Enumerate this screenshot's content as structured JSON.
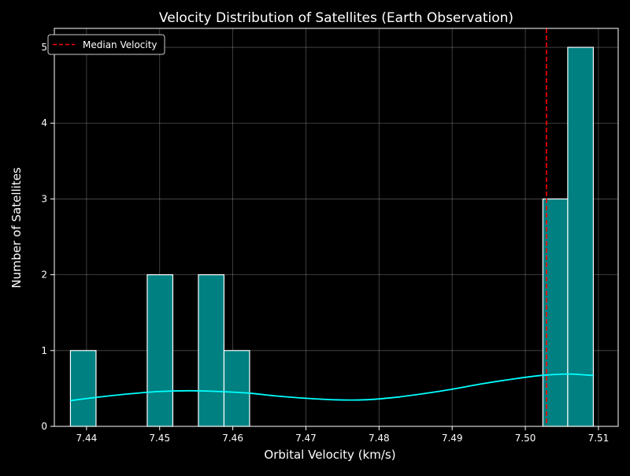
{
  "chart_data": {
    "type": "bar",
    "title": "Velocity Distribution of Satellites (Earth Observation)",
    "xlabel": "Orbital Velocity (km/s)",
    "ylabel": "Number of Satellites",
    "xlim": [
      7.4356,
      7.5127
    ],
    "ylim": [
      0,
      5.25
    ],
    "x_ticks": [
      7.44,
      7.45,
      7.46,
      7.47,
      7.48,
      7.49,
      7.5,
      7.51
    ],
    "x_tick_labels": [
      "7.44",
      "7.45",
      "7.46",
      "7.47",
      "7.48",
      "7.49",
      "7.50",
      "7.51"
    ],
    "y_ticks": [
      0,
      1,
      2,
      3,
      4,
      5
    ],
    "y_tick_labels": [
      "0",
      "1",
      "2",
      "3",
      "4",
      "5"
    ],
    "grid": true,
    "background": "#000000",
    "bar_fill": "#008080",
    "bar_edge": "#ffffff",
    "bin_edges": [
      7.4378,
      7.4413,
      7.4448,
      7.4483,
      7.4518,
      7.4553,
      7.4588,
      7.4623,
      7.4658,
      7.4693,
      7.4728,
      7.4763,
      7.4798,
      7.4833,
      7.4868,
      7.4903,
      7.4938,
      7.4973,
      7.5008,
      7.5024,
      7.5058,
      7.5093
    ],
    "bins": [
      {
        "x0": 7.4378,
        "x1": 7.4413,
        "count": 1
      },
      {
        "x0": 7.4483,
        "x1": 7.4518,
        "count": 2
      },
      {
        "x0": 7.4553,
        "x1": 7.4588,
        "count": 2
      },
      {
        "x0": 7.4588,
        "x1": 7.4623,
        "count": 1
      },
      {
        "x0": 7.5024,
        "x1": 7.5058,
        "count": 3
      },
      {
        "x0": 7.5058,
        "x1": 7.5093,
        "count": 5
      }
    ],
    "kde": {
      "color": "#00ffff",
      "x": [
        7.4378,
        7.442,
        7.446,
        7.45,
        7.454,
        7.458,
        7.462,
        7.466,
        7.47,
        7.474,
        7.478,
        7.482,
        7.486,
        7.49,
        7.494,
        7.498,
        7.502,
        7.506,
        7.5093
      ],
      "y": [
        0.34,
        0.39,
        0.43,
        0.46,
        0.47,
        0.46,
        0.44,
        0.4,
        0.37,
        0.35,
        0.35,
        0.38,
        0.43,
        0.49,
        0.56,
        0.62,
        0.67,
        0.69,
        0.67
      ]
    },
    "median": {
      "value": 7.5029,
      "color": "#ff0000",
      "label": "Median Velocity"
    },
    "legend": {
      "placement": "top-left",
      "entries": [
        "Median Velocity"
      ]
    }
  }
}
